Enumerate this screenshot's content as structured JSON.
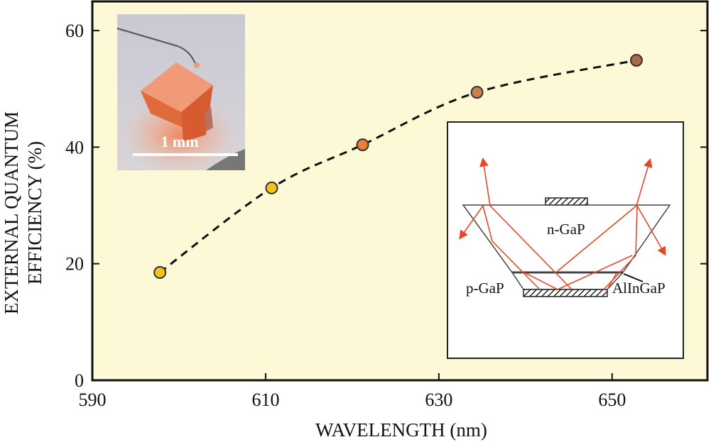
{
  "chart_data": {
    "type": "scatter",
    "xlabel": "WAVELENGTH (nm)",
    "ylabel_lines": [
      "EXTERNAL QUANTUM",
      "EFFICIENCY (%)"
    ],
    "xlim": [
      590,
      661
    ],
    "ylim": [
      0,
      65
    ],
    "x_ticks": [
      590,
      610,
      630,
      650
    ],
    "y_ticks": [
      0,
      20,
      40,
      60
    ],
    "grid": false,
    "background_color": "#fdf8d6",
    "fit_line": "dashed smooth curve through points",
    "points": [
      {
        "x": 597.8,
        "y": 18.5,
        "color": "#f2c41a"
      },
      {
        "x": 610.7,
        "y": 33.0,
        "color": "#f2c41a"
      },
      {
        "x": 621.2,
        "y": 40.4,
        "color": "#e9803a"
      },
      {
        "x": 634.4,
        "y": 49.4,
        "color": "#c98050"
      },
      {
        "x": 652.8,
        "y": 54.9,
        "color": "#a86a4a"
      }
    ],
    "insets": {
      "photo": {
        "scale_label": "1 mm"
      },
      "diagram": {
        "labels": {
          "n_layer": "n-GaP",
          "p_layer": "p-GaP",
          "active_layer": "AlInGaP"
        },
        "ray_color": "#e8482a"
      }
    }
  }
}
